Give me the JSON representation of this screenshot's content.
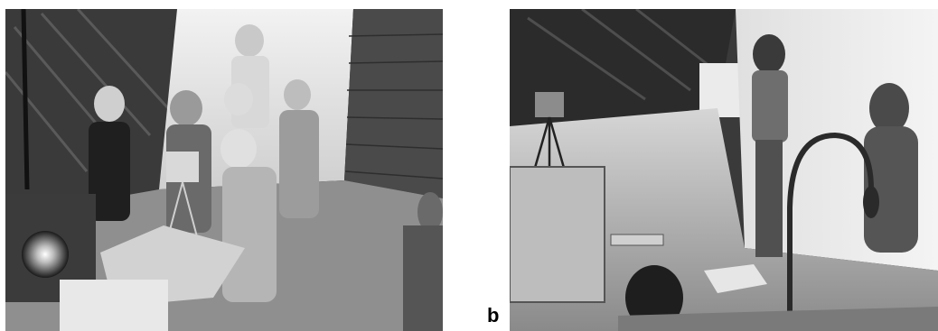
{
  "figure": {
    "panels": [
      {
        "label": ""
      },
      {
        "label": "b"
      }
    ]
  }
}
